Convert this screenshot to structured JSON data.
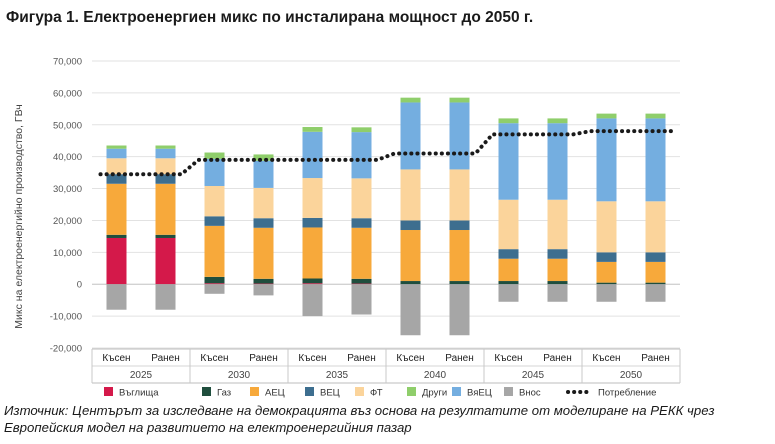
{
  "title": "Фигура 1. Електроенергиен микс по инсталирана мощност до 2050 г.",
  "source": "Източник: Центърът за изследване на демокрацията въз основа на резултатите от моделиране на РЕКК чрез Европейския модел на развитието на електроенергийния пазар",
  "chart_data": {
    "type": "bar",
    "stacked": true,
    "ylabel": "Микс на електроенергийно производство, ГВч",
    "ylim": [
      -20000,
      70000
    ],
    "yticks": [
      -20000,
      -10000,
      0,
      10000,
      20000,
      30000,
      40000,
      50000,
      60000,
      70000
    ],
    "ytick_labels": [
      "-20,000",
      "-10,000",
      "0",
      "10,000",
      "20,000",
      "30,000",
      "40,000",
      "50,000",
      "60,000",
      "70,000"
    ],
    "grid": true,
    "legend_position": "bottom",
    "groups": [
      "2025",
      "2030",
      "2035",
      "2040",
      "2045",
      "2050"
    ],
    "categories": [
      "Късен",
      "Ранен",
      "Късен",
      "Ранен",
      "Късен",
      "Ранен",
      "Късен",
      "Ранен",
      "Късен",
      "Ранен",
      "Късен",
      "Ранен"
    ],
    "series": [
      {
        "name": "Въглища",
        "color": "#d4194a",
        "values": [
          14500,
          14500,
          300,
          200,
          300,
          200,
          0,
          0,
          0,
          0,
          0,
          0
        ]
      },
      {
        "name": "Газ",
        "color": "#1f4e3d",
        "values": [
          1000,
          1000,
          2000,
          1500,
          1500,
          1500,
          1000,
          1000,
          1000,
          1000,
          500,
          500
        ]
      },
      {
        "name": "АЕЦ",
        "color": "#f7a93b",
        "values": [
          16000,
          16000,
          16000,
          16000,
          16000,
          16000,
          16000,
          16000,
          7000,
          7000,
          6500,
          6500
        ]
      },
      {
        "name": "ВЕЦ",
        "color": "#3d6e8f",
        "values": [
          3000,
          3000,
          3000,
          3000,
          3000,
          3000,
          3000,
          3000,
          3000,
          3000,
          3000,
          3000
        ]
      },
      {
        "name": "ФТ",
        "color": "#fbd49b",
        "values": [
          5000,
          5000,
          9500,
          9500,
          12500,
          12500,
          16000,
          16000,
          15500,
          15500,
          16000,
          16000
        ]
      },
      {
        "name": "ВяЕЦ",
        "color": "#74aee0",
        "values": [
          3000,
          3000,
          8500,
          8500,
          14500,
          14500,
          21000,
          21000,
          24000,
          24000,
          26000,
          26000
        ]
      },
      {
        "name": "Други",
        "color": "#8fce6b",
        "values": [
          1000,
          1000,
          2000,
          2000,
          1500,
          1500,
          1500,
          1500,
          1500,
          1500,
          1500,
          1500
        ]
      },
      {
        "name": "Внос",
        "color": "#a6a6a6",
        "values": [
          -8000,
          -8000,
          -3000,
          -3500,
          -10000,
          -9500,
          -16000,
          -16000,
          -5500,
          -5500,
          -5500,
          -5500
        ]
      }
    ],
    "line": {
      "name": "Потребление",
      "color": "#1a1a1a",
      "values": [
        34500,
        34500,
        39000,
        39000,
        39000,
        39000,
        41000,
        41000,
        47000,
        47000,
        48000,
        48000
      ]
    },
    "legend_order": [
      "Въглища",
      "Газ",
      "АЕЦ",
      "ВЕЦ",
      "ФТ",
      "Други",
      "ВяЕЦ",
      "Внос",
      "Потребление"
    ]
  }
}
